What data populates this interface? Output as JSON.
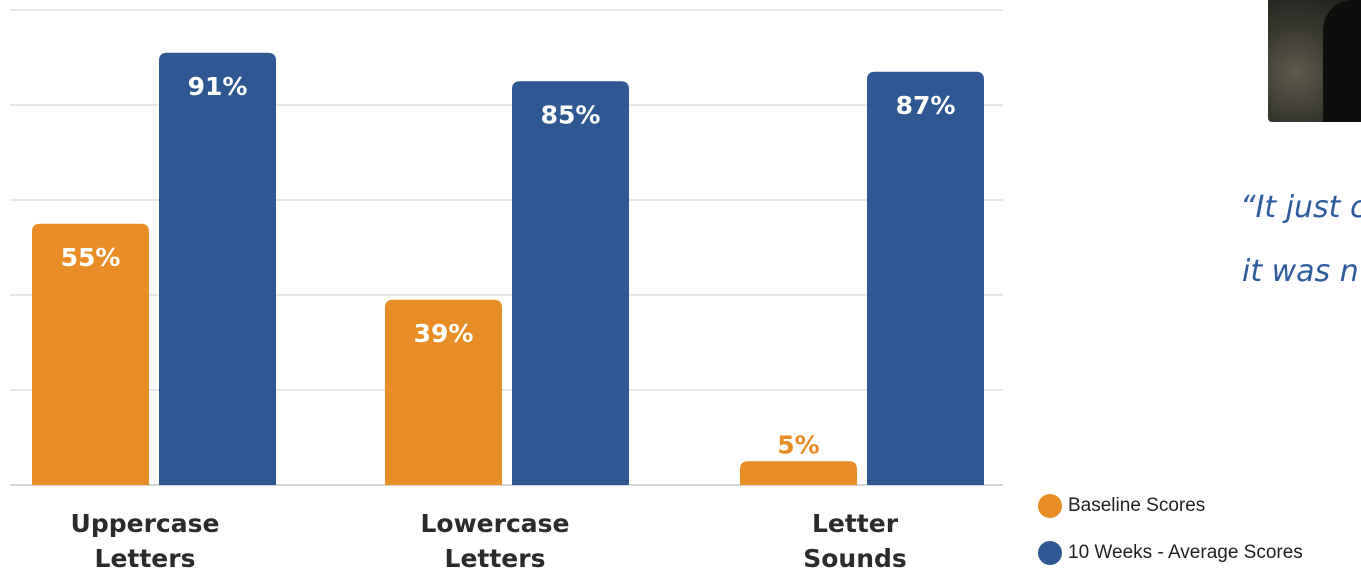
{
  "chart_data": {
    "type": "bar",
    "categories": [
      [
        "Uppercase",
        "Letters"
      ],
      [
        "Lowercase",
        "Letters"
      ],
      [
        "Letter",
        "Sounds"
      ]
    ],
    "series": [
      {
        "name": "Baseline Scores",
        "values": [
          55,
          39,
          5
        ],
        "labels": [
          "55%",
          "39%",
          "5%"
        ],
        "color": "#e88c25"
      },
      {
        "name": "10 Weeks - Average Scores",
        "values": [
          91,
          85,
          87
        ],
        "labels": [
          "91%",
          "85%",
          "87%"
        ],
        "color": "#2d5892"
      }
    ],
    "ylim": [
      0,
      100
    ],
    "grid": true,
    "legend_position": "bottom-right"
  },
  "quote": {
    "line1": "“It just c",
    "line2": "it was n"
  }
}
